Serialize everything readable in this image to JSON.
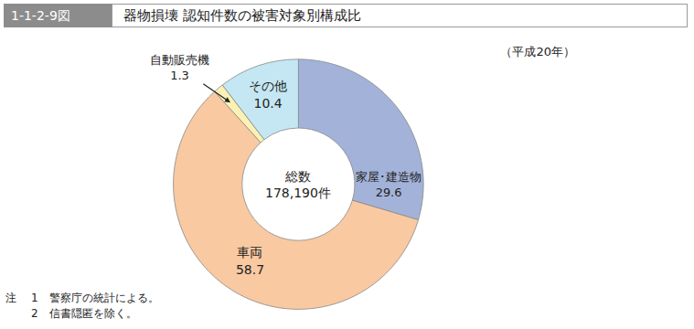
{
  "chart_data": {
    "type": "pie",
    "figure_label": "1-1-2-9図",
    "title": "器物損壊 認知件数の被害対象別構成比",
    "subtitle": "（平成20年）",
    "center_text": [
      "総数",
      "178,190件"
    ],
    "categories": [
      "家屋･建造物",
      "車両",
      "自動販売機",
      "その他"
    ],
    "values": [
      29.6,
      58.7,
      1.3,
      10.4
    ],
    "colors": [
      "#a3b2d9",
      "#f9c9a2",
      "#fbf1b4",
      "#c4e7f3"
    ],
    "data_labels": true,
    "notes_heading": "注",
    "notes": [
      "1　警察庁の統計による。",
      "2　信書隠匿を除く。"
    ]
  }
}
